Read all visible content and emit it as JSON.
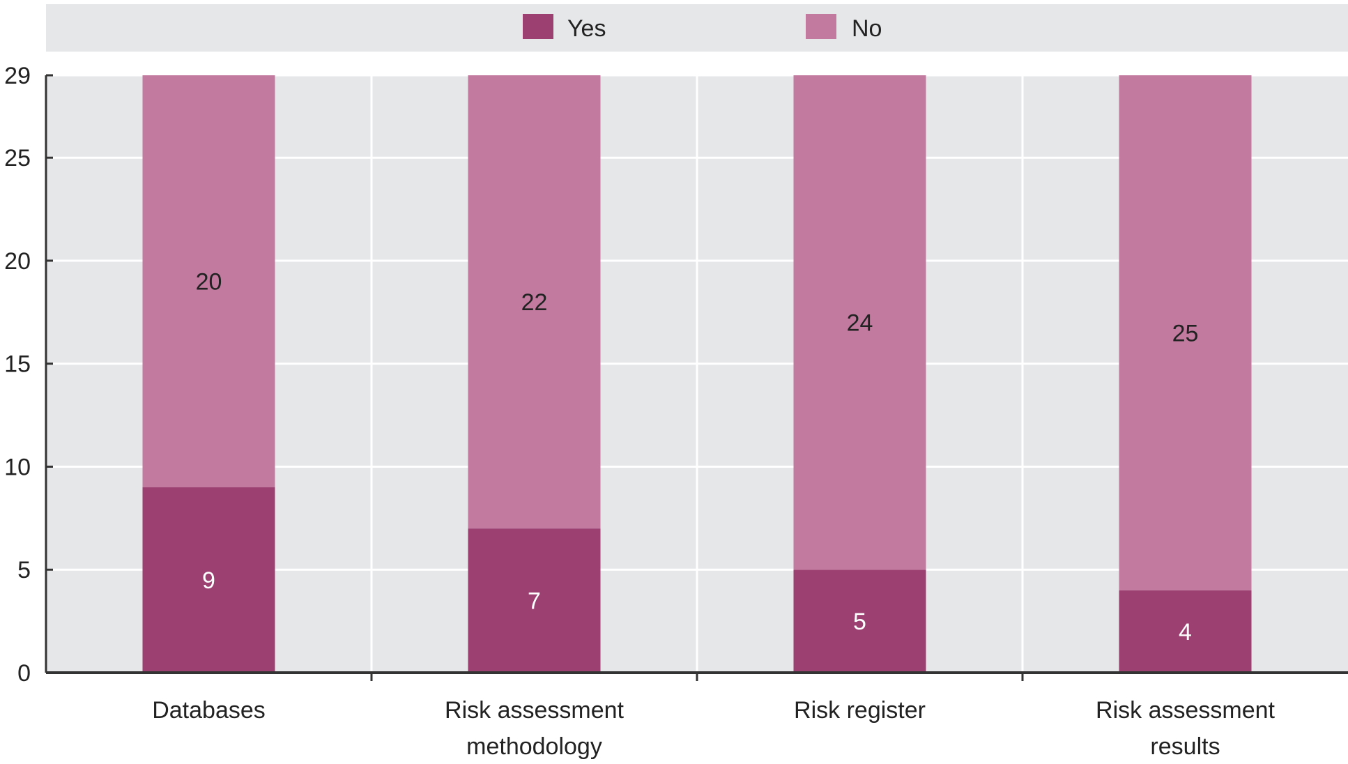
{
  "chart_data": {
    "type": "bar",
    "stacked": true,
    "categories": [
      [
        "Databases"
      ],
      [
        "Risk assessment",
        "methodology"
      ],
      [
        "Risk register"
      ],
      [
        "Risk assessment",
        "results"
      ]
    ],
    "series": [
      {
        "name": "Yes",
        "values": [
          9,
          7,
          5,
          4
        ],
        "color": "#9c4072"
      },
      {
        "name": "No",
        "values": [
          20,
          22,
          24,
          25
        ],
        "color": "#c27b9f"
      }
    ],
    "ylim": [
      0,
      29
    ],
    "yticks": [
      0,
      5,
      10,
      15,
      20,
      25,
      29
    ],
    "grid": true,
    "legend": "top-center",
    "title": "",
    "xlabel": "",
    "ylabel": ""
  },
  "colors": {
    "plot_background": "#e6e7e9",
    "legend_background": "#e6e7e9",
    "gridline": "#ffffff",
    "axis": "#333333"
  }
}
